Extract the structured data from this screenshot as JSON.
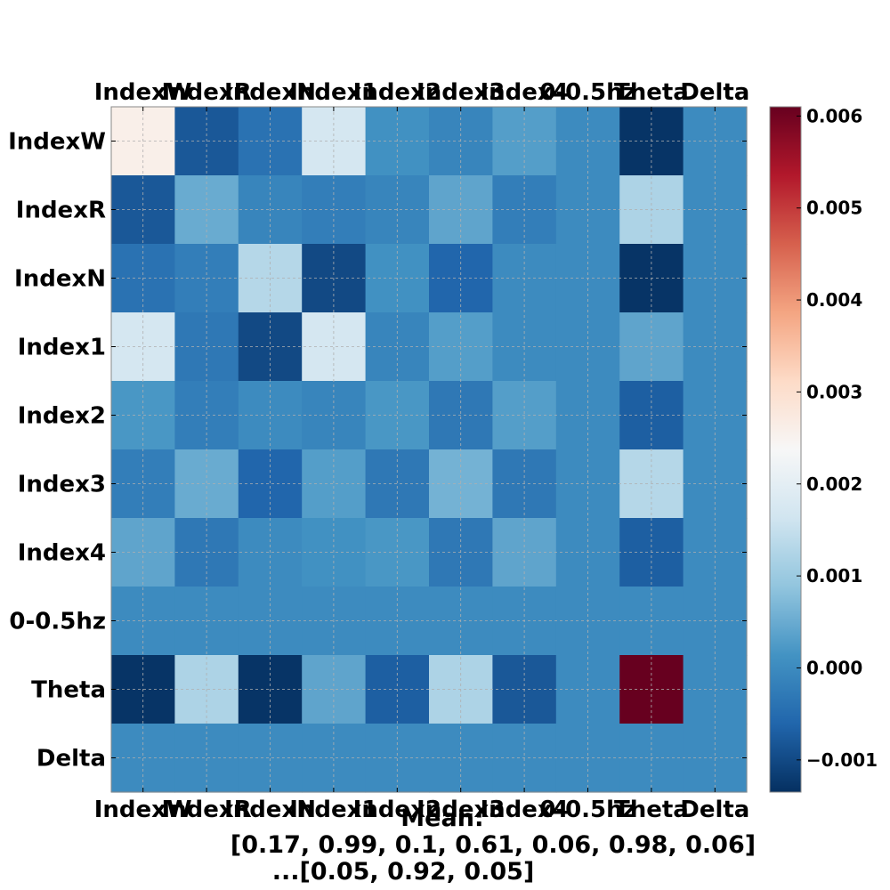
{
  "chart_data": {
    "type": "heatmap",
    "labels": [
      "IndexW",
      "IndexR",
      "IndexN",
      "Index1",
      "Index2",
      "Index3",
      "Index4",
      "0-0.5hz",
      "Theta",
      "Delta"
    ],
    "colormap": "RdBu_r",
    "colorbar": {
      "vmin": -0.00135,
      "vmax": 0.0061,
      "ticks": [
        -0.001,
        0.0,
        0.001,
        0.002,
        0.003,
        0.004,
        0.005,
        0.006
      ],
      "tick_labels": [
        "−0.001",
        "0.000",
        "0.001",
        "0.002",
        "0.003",
        "0.004",
        "0.005",
        "0.006"
      ]
    },
    "grid": true,
    "matrix": [
      [
        0.0026,
        -0.0008,
        -0.0004,
        0.0017,
        0.0001,
        -0.0001,
        0.0003,
        0.0,
        -0.0013,
        0.0
      ],
      [
        -0.0008,
        0.0005,
        -0.0001,
        -0.0002,
        -0.0001,
        0.0004,
        -0.0002,
        0.0,
        0.0012,
        0.0
      ],
      [
        -0.0004,
        -0.0002,
        0.0013,
        -0.001,
        0.0001,
        -0.0006,
        0.0,
        0.0,
        -0.0013,
        0.0
      ],
      [
        0.0017,
        -0.0003,
        -0.001,
        0.0017,
        -0.0001,
        0.0003,
        0.0,
        0.0,
        0.0004,
        0.0
      ],
      [
        0.0002,
        -0.0002,
        0.0,
        -0.0001,
        0.0002,
        -0.0003,
        0.0003,
        0.0,
        -0.0007,
        0.0
      ],
      [
        -0.0002,
        0.0005,
        -0.0006,
        0.0003,
        -0.0003,
        0.0006,
        -0.0003,
        0.0,
        0.0013,
        0.0
      ],
      [
        0.0004,
        -0.0003,
        0.0,
        0.0001,
        0.0002,
        -0.0003,
        0.0004,
        0.0,
        -0.0007,
        0.0
      ],
      [
        0.0,
        0.0,
        0.0,
        0.0,
        0.0,
        0.0,
        0.0,
        0.0,
        0.0,
        0.0
      ],
      [
        -0.0013,
        0.0012,
        -0.0013,
        0.0004,
        -0.0007,
        0.0012,
        -0.0008,
        0.0,
        0.0061,
        0.0
      ],
      [
        0.0,
        0.0,
        0.0,
        0.0,
        0.0,
        0.0,
        0.0,
        0.0,
        0.0,
        0.0
      ]
    ],
    "xlabel_lines": [
      "Mean:",
      "[0.17, 0.99, 0.1, 0.61, 0.06, 0.98, 0.06]",
      "...[0.05, 0.92, 0.05]"
    ]
  }
}
